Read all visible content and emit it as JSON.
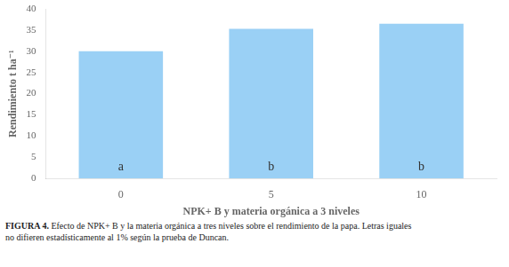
{
  "chart_data": {
    "type": "bar",
    "categories": [
      "0",
      "5",
      "10"
    ],
    "values": [
      30.0,
      35.3,
      36.5
    ],
    "xlabel": "NPK+ B y materia orgánica a 3 niveles",
    "ylabel": "Rendimiento t ha⁻¹",
    "ylim": [
      0,
      40
    ],
    "yticks": [
      0,
      5,
      10,
      15,
      20,
      25,
      30,
      35,
      40
    ],
    "grid": false,
    "bar_labels": [
      "a",
      "b",
      "b"
    ],
    "caption_label": "FIGURA 4.",
    "caption": " Efecto de NPK+ B y la materia orgánica a tres niveles sobre el rendimiento de la papa. Letras iguales\nno difieren estadísticamente al 1% según la prueba de Duncan."
  }
}
